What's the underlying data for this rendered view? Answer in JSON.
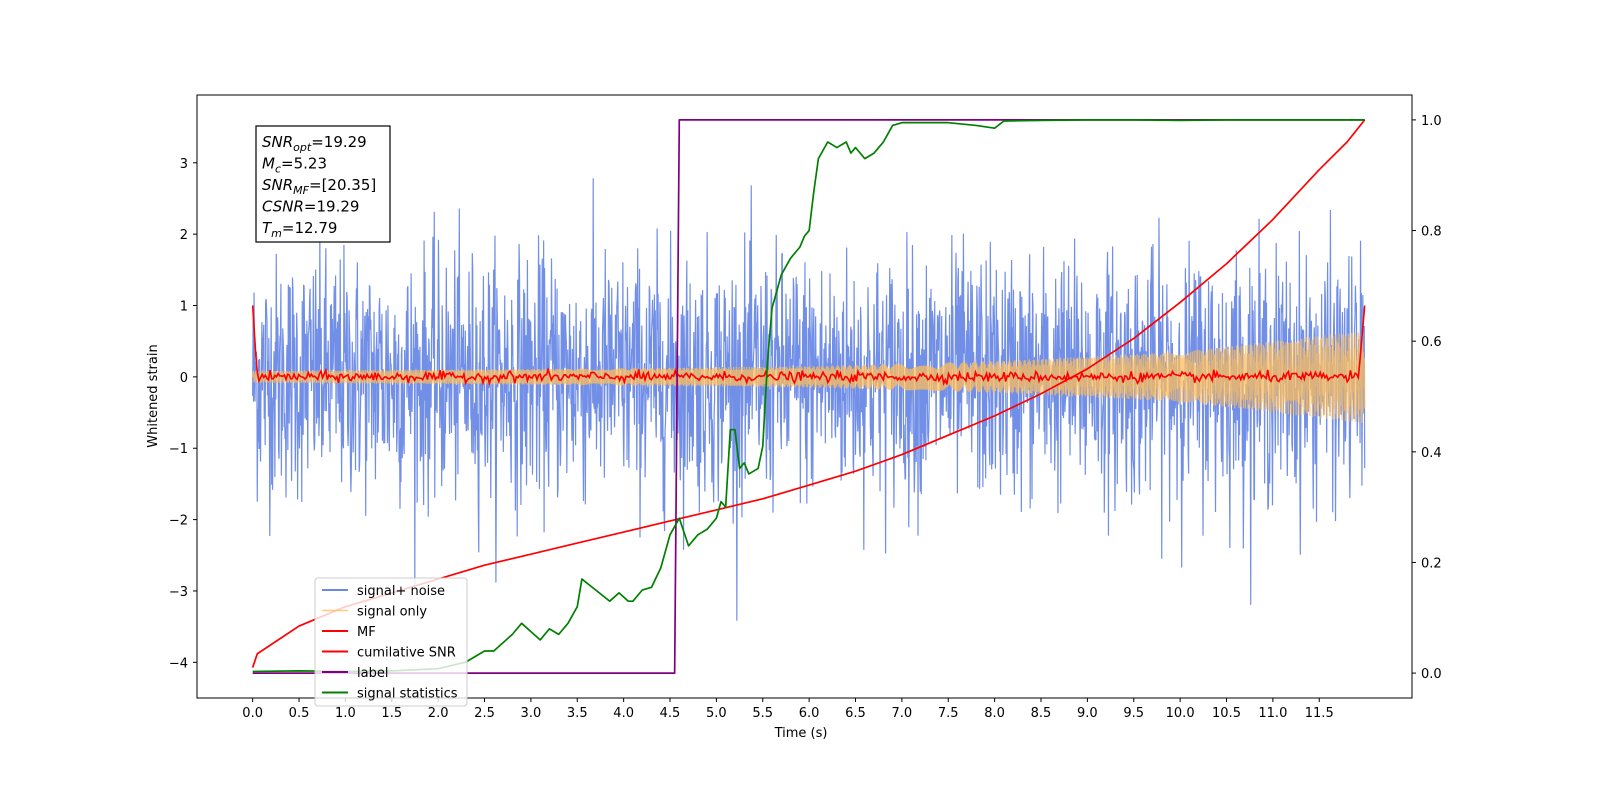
{
  "chart_data": {
    "type": "line",
    "xlabel": "Time (s)",
    "ylabel": "Whitened strain",
    "xlim": [
      -0.6,
      12.5
    ],
    "ylim": [
      -4.5,
      3.95
    ],
    "y2lim": [
      -0.045,
      1.045
    ],
    "xticks": [
      "0.0",
      "0.5",
      "1.0",
      "1.5",
      "2.0",
      "2.5",
      "3.0",
      "3.5",
      "4.0",
      "4.5",
      "5.0",
      "5.5",
      "6.0",
      "6.5",
      "7.0",
      "7.5",
      "8.0",
      "8.5",
      "9.0",
      "9.5",
      "10.0",
      "10.5",
      "11.0",
      "11.5"
    ],
    "yticks": [
      "3",
      "2",
      "1",
      "0",
      "−1",
      "−2",
      "−3",
      "−4"
    ],
    "y2ticks": [
      "1.0",
      "0.8",
      "0.6",
      "0.4",
      "0.2",
      "0.0"
    ],
    "grid": false,
    "legend_placement": "lower-left",
    "annotation": {
      "lines": [
        {
          "main": "SNR",
          "sub": "opt",
          "rest": "=19.29"
        },
        {
          "main": "M",
          "sub": "c",
          "rest": "=5.23"
        },
        {
          "main": "SNR",
          "sub": "MF",
          "rest": "=[20.35]"
        },
        {
          "main": "CSNR",
          "sub": "",
          "rest": "=19.29"
        },
        {
          "main": "T",
          "sub": "m",
          "rest": "=12.79"
        }
      ]
    },
    "series": [
      {
        "name": "signal+ noise",
        "color": "#6a89e6",
        "axis": "left",
        "kind": "noise",
        "t_range": [
          0,
          11.99
        ],
        "amplitude_sd": 0.85
      },
      {
        "name": "signal only",
        "color": "#ffbe5a",
        "axis": "left",
        "kind": "chirp_envelope",
        "envelope": {
          "t": [
            0,
            2,
            4,
            6,
            8,
            10,
            11.99
          ],
          "a": [
            0.08,
            0.1,
            0.12,
            0.15,
            0.22,
            0.35,
            0.65
          ]
        }
      },
      {
        "name": "MF",
        "color": "#ff0000",
        "axis": "left",
        "kind": "matched_filter",
        "endpoints": {
          "t": [
            0,
            0.05,
            11.95,
            11.99
          ],
          "v": [
            1.0,
            -0.05,
            0.1,
            1.0
          ]
        }
      },
      {
        "name": "cumilative SNR",
        "color": "#ff0000",
        "axis": "right",
        "t": [
          0.0,
          0.05,
          0.5,
          1.0,
          1.5,
          2.0,
          2.5,
          3.0,
          3.5,
          4.0,
          4.5,
          5.0,
          5.5,
          6.0,
          6.5,
          7.0,
          7.5,
          8.0,
          8.5,
          9.0,
          9.5,
          10.0,
          10.5,
          11.0,
          11.5,
          11.8,
          11.99
        ],
        "v": [
          0.01,
          0.035,
          0.085,
          0.12,
          0.145,
          0.17,
          0.195,
          0.215,
          0.235,
          0.255,
          0.275,
          0.295,
          0.315,
          0.34,
          0.365,
          0.395,
          0.43,
          0.465,
          0.505,
          0.55,
          0.605,
          0.67,
          0.74,
          0.82,
          0.91,
          0.96,
          1.0
        ]
      },
      {
        "name": "label",
        "color": "#800080",
        "axis": "right",
        "t": [
          0.0,
          4.55,
          4.6,
          11.99
        ],
        "v": [
          0.0,
          0.0,
          1.0,
          1.0
        ]
      },
      {
        "name": "signal statistics",
        "color": "#008000",
        "axis": "right",
        "t": [
          0.0,
          0.5,
          1.0,
          1.5,
          2.0,
          2.3,
          2.5,
          2.6,
          2.8,
          2.9,
          3.0,
          3.1,
          3.2,
          3.3,
          3.4,
          3.5,
          3.55,
          3.7,
          3.85,
          3.95,
          4.05,
          4.1,
          4.2,
          4.3,
          4.4,
          4.5,
          4.6,
          4.7,
          4.8,
          4.9,
          5.0,
          5.05,
          5.1,
          5.15,
          5.2,
          5.25,
          5.3,
          5.35,
          5.45,
          5.5,
          5.55,
          5.6,
          5.7,
          5.8,
          5.9,
          5.95,
          6.0,
          6.05,
          6.1,
          6.2,
          6.3,
          6.4,
          6.45,
          6.5,
          6.6,
          6.7,
          6.8,
          6.9,
          7.0,
          7.2,
          7.5,
          7.8,
          8.0,
          8.1,
          8.5,
          9.0,
          9.5,
          10.0,
          10.5,
          11.0,
          11.5,
          11.99
        ],
        "v": [
          0.003,
          0.004,
          0.003,
          0.004,
          0.008,
          0.02,
          0.04,
          0.04,
          0.07,
          0.09,
          0.075,
          0.06,
          0.08,
          0.07,
          0.09,
          0.12,
          0.17,
          0.15,
          0.13,
          0.145,
          0.13,
          0.13,
          0.15,
          0.155,
          0.19,
          0.25,
          0.28,
          0.23,
          0.25,
          0.26,
          0.28,
          0.31,
          0.3,
          0.44,
          0.44,
          0.37,
          0.38,
          0.36,
          0.37,
          0.41,
          0.56,
          0.66,
          0.72,
          0.75,
          0.77,
          0.79,
          0.8,
          0.87,
          0.93,
          0.96,
          0.95,
          0.96,
          0.94,
          0.95,
          0.93,
          0.94,
          0.96,
          0.99,
          0.995,
          0.995,
          0.995,
          0.99,
          0.985,
          0.998,
          0.999,
          1.0,
          1.0,
          0.999,
          1.0,
          1.0,
          1.0,
          1.0
        ]
      }
    ]
  }
}
